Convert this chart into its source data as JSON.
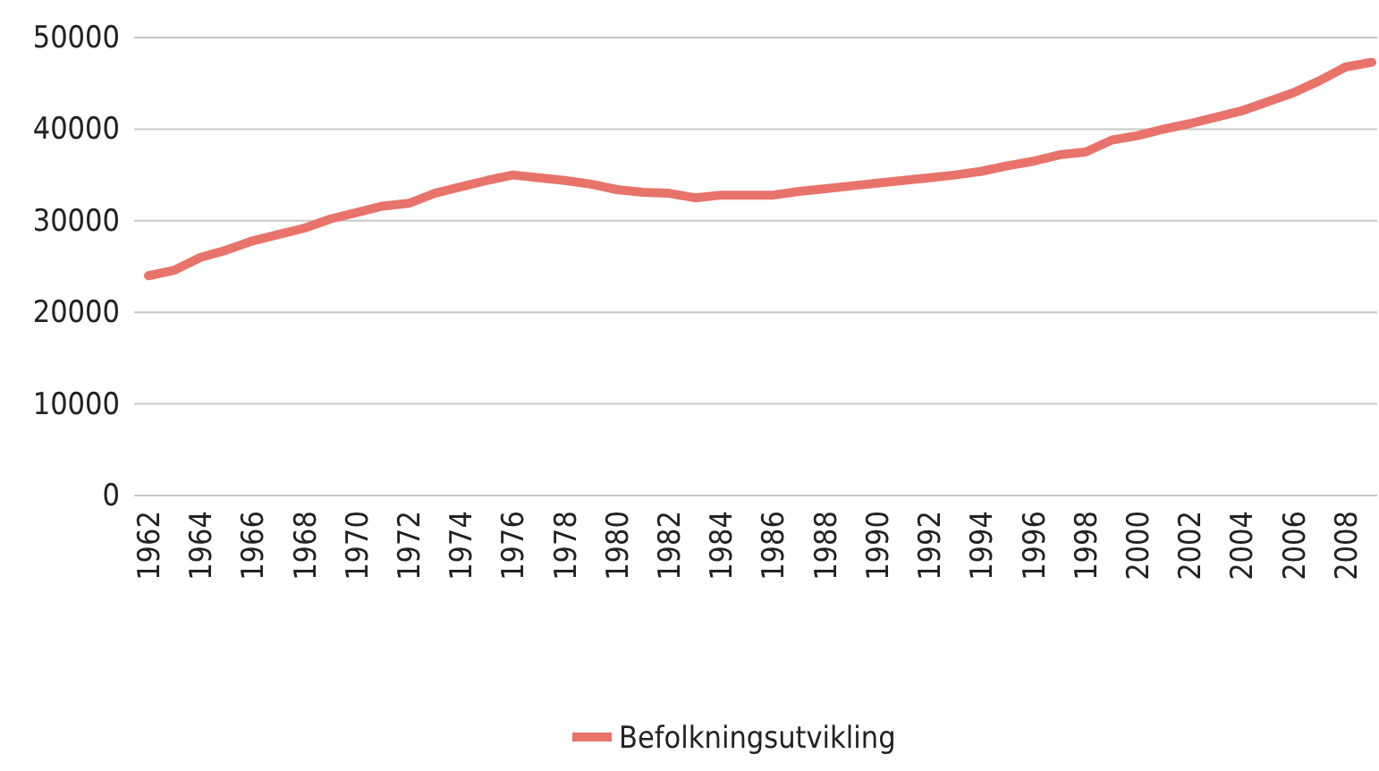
{
  "chart_data": {
    "type": "line",
    "categories": [
      "1962",
      null,
      "1964",
      null,
      "1966",
      null,
      "1968",
      null,
      "1970",
      null,
      "1972",
      null,
      "1974",
      null,
      "1976",
      null,
      "1978",
      null,
      "1980",
      null,
      "1982",
      null,
      "1984",
      null,
      "1986",
      null,
      "1988",
      null,
      "1990",
      null,
      "1992",
      null,
      "1994",
      null,
      "1996",
      null,
      "1998",
      null,
      "2000",
      null,
      "2002",
      null,
      "2004",
      null,
      "2006",
      null,
      "2008",
      null
    ],
    "series": [
      {
        "name": "Befolkningsutvikling",
        "color": "#e8736a",
        "values": [
          24000,
          24600,
          26000,
          26800,
          27800,
          28500,
          29200,
          30200,
          30900,
          31600,
          31900,
          33000,
          33700,
          34400,
          35000,
          34700,
          34400,
          34000,
          33400,
          33100,
          33000,
          32500,
          32800,
          32800,
          32800,
          33200,
          33500,
          33800,
          34100,
          34400,
          34700,
          35000,
          35400,
          36000,
          36500,
          37200,
          37500,
          38800,
          39300,
          40000,
          40600,
          41300,
          42000,
          43000,
          44000,
          45300,
          46800,
          47300
        ]
      }
    ],
    "ylim": [
      0,
      50000
    ],
    "yticks": [
      0,
      10000,
      20000,
      30000,
      40000,
      50000
    ],
    "grid": "y",
    "legend": "bottom",
    "marker": "none",
    "line_style": "solid"
  }
}
